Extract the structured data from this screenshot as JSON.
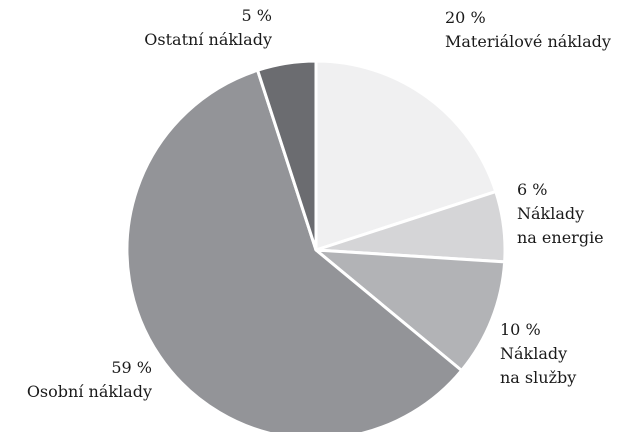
{
  "chart_data": {
    "type": "pie",
    "categories": [
      "Materiálové náklady",
      "Náklady\nna energie",
      "Náklady\nna služby",
      "Osobní náklady",
      "Ostatní náklady"
    ],
    "values": [
      20,
      6,
      10,
      59,
      5
    ],
    "value_labels": [
      "20 %",
      "6 %",
      "10 %",
      "59 %",
      "5 %"
    ],
    "colors": [
      "#f0f0f1",
      "#d5d5d7",
      "#b2b3b6",
      "#939498",
      "#6b6c70"
    ]
  }
}
